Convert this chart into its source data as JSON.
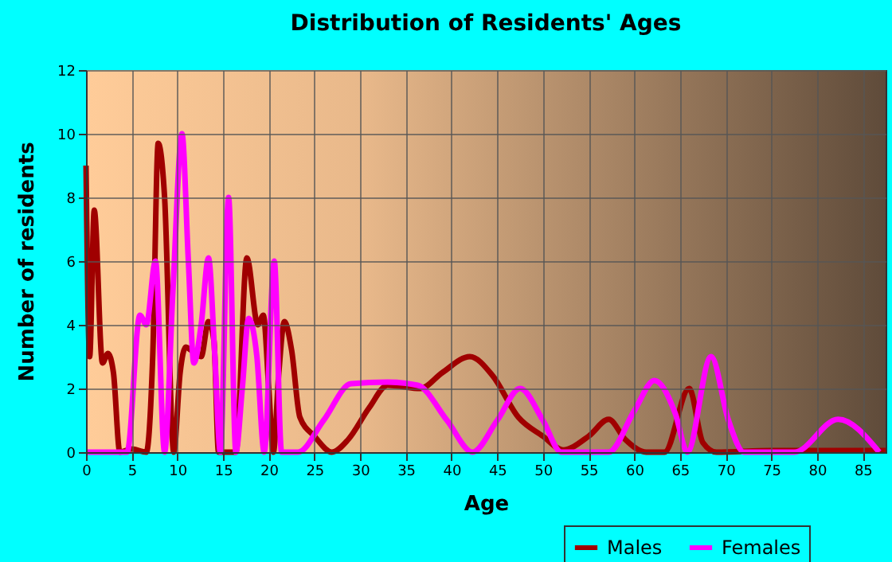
{
  "chart_data": {
    "type": "line",
    "title": "Distribution of Residents' Ages",
    "xlabel": "Age",
    "ylabel": "Number of residents",
    "xlim": [
      0,
      87.5
    ],
    "xticks": [
      0,
      5,
      10,
      15,
      20,
      25,
      30,
      35,
      40,
      45,
      50,
      55,
      60,
      65,
      70,
      75,
      80,
      85
    ],
    "ylim": [
      0,
      12
    ],
    "yticks": [
      0,
      2,
      4,
      6,
      8,
      10,
      12
    ],
    "grid": true,
    "legend": "bottom right",
    "marker": "none",
    "line_style": "solid",
    "series": [
      {
        "name": "Males",
        "color": "#a00000",
        "x": [
          0,
          0.4,
          0.9,
          1.8,
          2.4,
          3,
          3.7,
          5,
          6.6,
          7.3,
          7.9,
          8.6,
          9.6,
          10.3,
          10.9,
          11.5,
          12.6,
          13.4,
          14,
          14.5,
          15.5,
          16.4,
          17.6,
          18.8,
          19.4,
          20,
          20.5,
          21.1,
          21.7,
          22.5,
          23.4,
          25,
          26.9,
          28.7,
          31,
          33,
          36.6,
          39,
          42,
          44.5,
          47.3,
          50,
          52.2,
          55,
          57.2,
          59,
          61.3,
          63.3,
          66,
          67.5,
          69,
          75,
          87.5
        ],
        "values": [
          9,
          3,
          7.6,
          2.8,
          3.1,
          2.5,
          0,
          0.1,
          0,
          3,
          9.7,
          8,
          0,
          2.5,
          3.3,
          3.2,
          3,
          4.1,
          3.5,
          0,
          0,
          0,
          6.1,
          4,
          4.3,
          2,
          0,
          2.5,
          4.1,
          3.2,
          1.1,
          0.5,
          0,
          0.4,
          1.4,
          2.1,
          2,
          2.5,
          3,
          2.4,
          1.1,
          0.5,
          0.07,
          0.5,
          1.03,
          0.4,
          0,
          0,
          2,
          0.3,
          0,
          0.05,
          0.05
        ]
      },
      {
        "name": "Females",
        "color": "#ff00ff",
        "x": [
          0,
          4.5,
          5.9,
          6.6,
          7.6,
          8.6,
          9.5,
          10.5,
          11.2,
          11.8,
          12.6,
          13.4,
          14.1,
          14.7,
          15.6,
          16.4,
          17.1,
          17.8,
          18.7,
          19.5,
          20.6,
          21.4,
          23.2,
          26,
          29,
          33,
          36.3,
          39.5,
          42.3,
          45,
          47.5,
          50,
          52,
          57.2,
          60,
          62.2,
          64.5,
          65.8,
          68.4,
          70.3,
          72,
          77.5,
          82.3,
          86.8
        ],
        "values": [
          0,
          0,
          4.3,
          4,
          6,
          0,
          5,
          10,
          6,
          2.8,
          4,
          6.1,
          3,
          0,
          8,
          0,
          2,
          4.2,
          3,
          0,
          6,
          0,
          0,
          1,
          2.15,
          2.2,
          2.1,
          1,
          0,
          1,
          2,
          1,
          0,
          0,
          1.3,
          2.25,
          1.2,
          0,
          3,
          1,
          0,
          0,
          1.03,
          0
        ]
      }
    ]
  }
}
